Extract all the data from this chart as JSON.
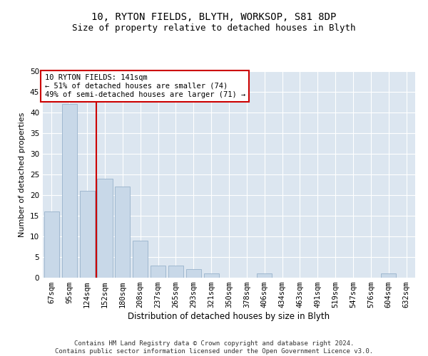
{
  "title1": "10, RYTON FIELDS, BLYTH, WORKSOP, S81 8DP",
  "title2": "Size of property relative to detached houses in Blyth",
  "xlabel": "Distribution of detached houses by size in Blyth",
  "ylabel": "Number of detached properties",
  "categories": [
    "67sqm",
    "95sqm",
    "124sqm",
    "152sqm",
    "180sqm",
    "208sqm",
    "237sqm",
    "265sqm",
    "293sqm",
    "321sqm",
    "350sqm",
    "378sqm",
    "406sqm",
    "434sqm",
    "463sqm",
    "491sqm",
    "519sqm",
    "547sqm",
    "576sqm",
    "604sqm",
    "632sqm"
  ],
  "values": [
    16,
    42,
    21,
    24,
    22,
    9,
    3,
    3,
    2,
    1,
    0,
    0,
    1,
    0,
    0,
    0,
    0,
    0,
    0,
    1,
    0
  ],
  "bar_color": "#c8d8e8",
  "bar_edgecolor": "#a0b8d0",
  "vline_x": 2.5,
  "vline_color": "#cc0000",
  "annotation_text": "10 RYTON FIELDS: 141sqm\n← 51% of detached houses are smaller (74)\n49% of semi-detached houses are larger (71) →",
  "annotation_box_color": "#ffffff",
  "annotation_box_edgecolor": "#cc0000",
  "ylim": [
    0,
    50
  ],
  "yticks": [
    0,
    5,
    10,
    15,
    20,
    25,
    30,
    35,
    40,
    45,
    50
  ],
  "background_color": "#dce6f0",
  "footer": "Contains HM Land Registry data © Crown copyright and database right 2024.\nContains public sector information licensed under the Open Government Licence v3.0.",
  "title1_fontsize": 10,
  "title2_fontsize": 9,
  "xlabel_fontsize": 8.5,
  "ylabel_fontsize": 8,
  "tick_fontsize": 7.5,
  "annotation_fontsize": 7.5,
  "footer_fontsize": 6.5
}
